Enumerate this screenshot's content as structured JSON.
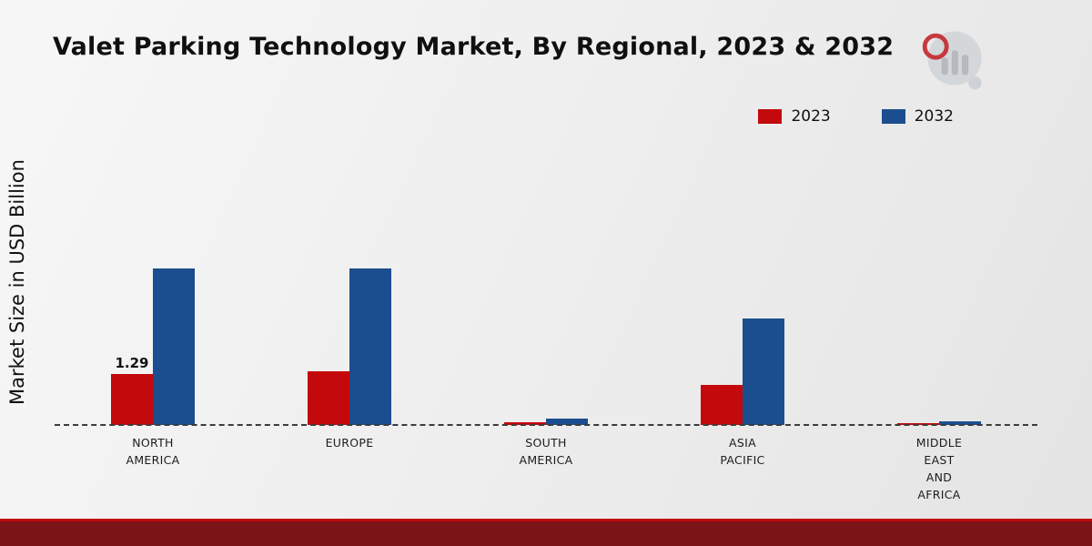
{
  "title": "Valet Parking Technology Market, By Regional, 2023 & 2032",
  "ylabel": "Market Size in USD Billion",
  "legend": {
    "items": [
      {
        "label": "2023",
        "color": "#c3090c"
      },
      {
        "label": "2032",
        "color": "#1b4e8e"
      }
    ]
  },
  "chart_data": {
    "type": "bar",
    "title": "Valet Parking Technology Market, By Regional, 2023 & 2032",
    "xlabel": "",
    "ylabel": "Market Size in USD Billion",
    "categories": [
      "NORTH AMERICA",
      "EUROPE",
      "SOUTH AMERICA",
      "ASIA PACIFIC",
      "MIDDLE EAST AND AFRICA"
    ],
    "series": [
      {
        "name": "2023",
        "color": "#c3090c",
        "values": [
          1.29,
          1.35,
          0.07,
          1.0,
          0.04
        ]
      },
      {
        "name": "2032",
        "color": "#1b4e8e",
        "values": [
          3.95,
          3.95,
          0.17,
          2.7,
          0.09
        ]
      }
    ],
    "annotations": [
      {
        "series_index": 0,
        "category_index": 0,
        "text": "1.29"
      }
    ],
    "ylim": [
      0,
      4.5
    ],
    "baseline_style": "dashed",
    "legend_position": "top-right",
    "grid": false
  },
  "logo_name": "market-research-logo"
}
